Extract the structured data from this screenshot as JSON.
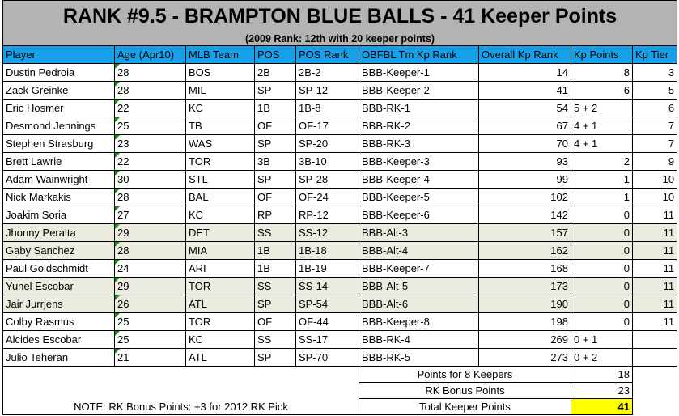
{
  "title": "RANK #9.5 - BRAMPTON BLUE BALLS - 41 Keeper Points",
  "subtitle": "(2009 Rank: 12th with 20 keeper points)",
  "columns": [
    "Player",
    "Age (Apr10)",
    "MLB Team",
    "POS",
    "POS Rank",
    "OBFBL Tm Kp Rank",
    "Overall Kp Rank",
    "Kp Points",
    "Kp Tier"
  ],
  "colors": {
    "header": "#17a0e8",
    "title_bg": "#b3b3b3",
    "alt_row": "#ecebe0",
    "total_highlight": "#ffff00"
  },
  "rows": [
    {
      "player": "Dustin Pedroia",
      "age": "28",
      "team": "BOS",
      "pos": "2B",
      "pos_rank": "2B-2",
      "tm_rank": "BBB-Keeper-1",
      "overall": "14",
      "kp_points": "8",
      "tier": "3",
      "alt": false
    },
    {
      "player": "Zack Greinke",
      "age": "28",
      "team": "MIL",
      "pos": "SP",
      "pos_rank": "SP-12",
      "tm_rank": "BBB-Keeper-2",
      "overall": "41",
      "kp_points": "6",
      "tier": "5",
      "alt": false
    },
    {
      "player": "Eric Hosmer",
      "age": "22",
      "team": "KC",
      "pos": "1B",
      "pos_rank": "1B-8",
      "tm_rank": "BBB-RK-1",
      "overall": "54",
      "kp_points": "5 + 2",
      "tier": "6",
      "alt": false
    },
    {
      "player": "Desmond Jennings",
      "age": "25",
      "team": "TB",
      "pos": "OF",
      "pos_rank": "OF-17",
      "tm_rank": "BBB-RK-2",
      "overall": "67",
      "kp_points": "4 + 1",
      "tier": "7",
      "alt": false
    },
    {
      "player": "Stephen Strasburg",
      "age": "23",
      "team": "WAS",
      "pos": "SP",
      "pos_rank": "SP-20",
      "tm_rank": "BBB-RK-3",
      "overall": "70",
      "kp_points": "4 + 1",
      "tier": "7",
      "alt": false
    },
    {
      "player": "Brett Lawrie",
      "age": "22",
      "team": "TOR",
      "pos": "3B",
      "pos_rank": "3B-10",
      "tm_rank": "BBB-Keeper-3",
      "overall": "93",
      "kp_points": "2",
      "tier": "9",
      "alt": false
    },
    {
      "player": "Adam Wainwright",
      "age": "30",
      "team": "STL",
      "pos": "SP",
      "pos_rank": "SP-28",
      "tm_rank": "BBB-Keeper-4",
      "overall": "99",
      "kp_points": "1",
      "tier": "10",
      "alt": false
    },
    {
      "player": "Nick Markakis",
      "age": "28",
      "team": "BAL",
      "pos": "OF",
      "pos_rank": "OF-24",
      "tm_rank": "BBB-Keeper-5",
      "overall": "102",
      "kp_points": "1",
      "tier": "10",
      "alt": false
    },
    {
      "player": "Joakim Soria",
      "age": "27",
      "team": "KC",
      "pos": "RP",
      "pos_rank": "RP-12",
      "tm_rank": "BBB-Keeper-6",
      "overall": "142",
      "kp_points": "0",
      "tier": "11",
      "alt": false
    },
    {
      "player": "Jhonny Peralta",
      "age": "29",
      "team": "DET",
      "pos": "SS",
      "pos_rank": "SS-12",
      "tm_rank": "BBB-Alt-3",
      "overall": "157",
      "kp_points": "0",
      "tier": "11",
      "alt": true
    },
    {
      "player": "Gaby Sanchez",
      "age": "28",
      "team": "MIA",
      "pos": "1B",
      "pos_rank": "1B-18",
      "tm_rank": "BBB-Alt-4",
      "overall": "162",
      "kp_points": "0",
      "tier": "11",
      "alt": true
    },
    {
      "player": "Paul Goldschmidt",
      "age": "24",
      "team": "ARI",
      "pos": "1B",
      "pos_rank": "1B-19",
      "tm_rank": "BBB-Keeper-7",
      "overall": "168",
      "kp_points": "0",
      "tier": "11",
      "alt": false
    },
    {
      "player": "Yunel Escobar",
      "age": "29",
      "team": "TOR",
      "pos": "SS",
      "pos_rank": "SS-14",
      "tm_rank": "BBB-Alt-5",
      "overall": "173",
      "kp_points": "0",
      "tier": "11",
      "alt": true
    },
    {
      "player": "Jair Jurrjens",
      "age": "26",
      "team": "ATL",
      "pos": "SP",
      "pos_rank": "SP-54",
      "tm_rank": "BBB-Alt-6",
      "overall": "190",
      "kp_points": "0",
      "tier": "11",
      "alt": true
    },
    {
      "player": "Colby Rasmus",
      "age": "25",
      "team": "TOR",
      "pos": "OF",
      "pos_rank": "OF-44",
      "tm_rank": "BBB-Keeper-8",
      "overall": "198",
      "kp_points": "0",
      "tier": "11",
      "alt": false
    },
    {
      "player": "Alcides Escobar",
      "age": "25",
      "team": "KC",
      "pos": "SS",
      "pos_rank": "SS-17",
      "tm_rank": "BBB-RK-4",
      "overall": "269",
      "kp_points": "0 + 1",
      "tier": "",
      "alt": false
    },
    {
      "player": "Julio Teheran",
      "age": "21",
      "team": "ATL",
      "pos": "SP",
      "pos_rank": "SP-70",
      "tm_rank": "BBB-RK-5",
      "overall": "273",
      "kp_points": "0 + 2",
      "tier": "",
      "alt": false
    }
  ],
  "summary": [
    {
      "label": "Points for 8 Keepers",
      "value": "18"
    },
    {
      "label": "RK Bonus Points",
      "value": "23"
    },
    {
      "label": "Total Keeper Points",
      "value": "41"
    }
  ],
  "note": "NOTE:  RK Bonus Points: +3 for 2012 RK Pick"
}
